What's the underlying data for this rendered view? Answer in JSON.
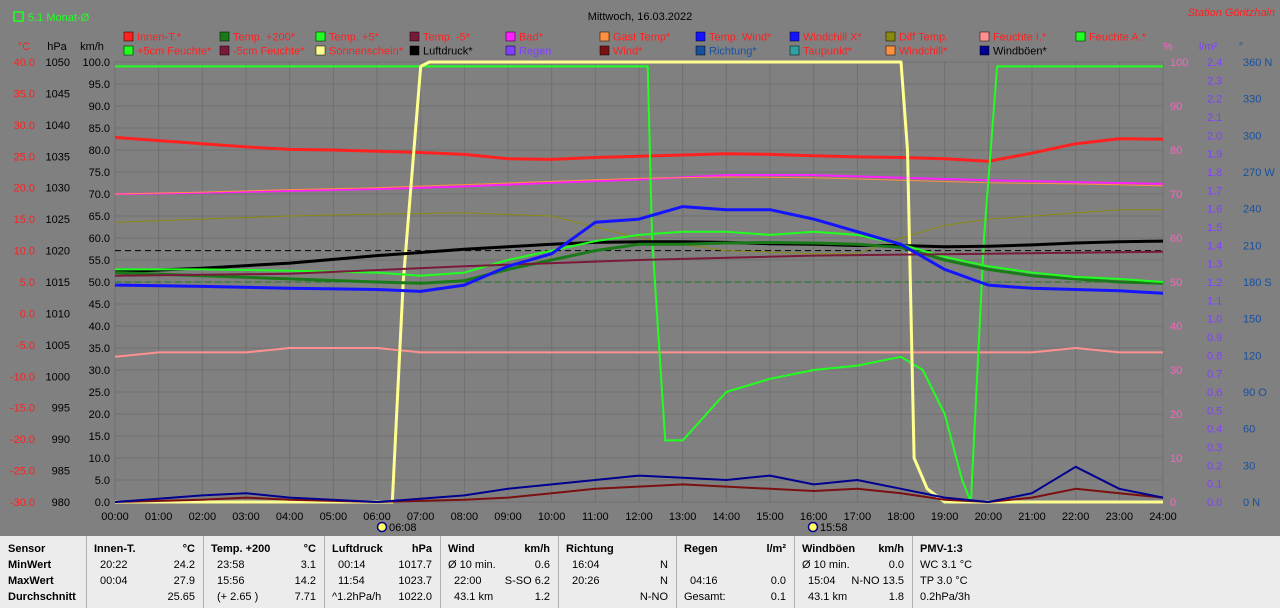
{
  "header": {
    "title": "Mittwoch, 16.03.2022",
    "station": "Station Göritzhain",
    "monthly_avg_label": "5.1 Monat-Ø"
  },
  "colors": {
    "background": "#808080",
    "grid": "#707070",
    "innen_t": "#ff2020",
    "temp_200": "#1a7a1a",
    "temp_p5": "#20ff20",
    "temp_m5": "#7a1a3a",
    "bad": "#ff20ff",
    "gast": "#ff9040",
    "temp_wind": "#1414ff",
    "windchill_x": "#1414ff",
    "diff": "#8a8a10",
    "feuchte_i": "#ff9090",
    "feuchte_a": "#20ff20",
    "sonne": "#ffff90",
    "luftdruck": "#000000",
    "regen": "#8040ff",
    "wind": "#7a1010",
    "richtung": "#1850a0",
    "taupunkt": "#30a0a0",
    "windboeen": "#000090"
  },
  "legend": [
    {
      "label": "Innen-T.*",
      "color": "#ff2020",
      "text_color": "#ff2020"
    },
    {
      "label": "Temp. +200*",
      "color": "#1a7a1a",
      "text_color": "#ff2020"
    },
    {
      "label": "Temp. +5*",
      "color": "#20ff20",
      "text_color": "#ff2020"
    },
    {
      "label": "Temp. -5*",
      "color": "#7a1a3a",
      "text_color": "#ff2020"
    },
    {
      "label": "Bad*",
      "color": "#ff20ff",
      "text_color": "#ff2020"
    },
    {
      "label": "Gast Temp*",
      "color": "#ff9040",
      "text_color": "#ff2020"
    },
    {
      "label": "Temp. Wind*",
      "color": "#1414ff",
      "text_color": "#ff2020"
    },
    {
      "label": "Windchill X*",
      "color": "#1414ff",
      "text_color": "#ff2020"
    },
    {
      "label": "Diff Temp.",
      "color": "#8a8a10",
      "text_color": "#ff2020"
    },
    {
      "label": "Feuchte I.*",
      "color": "#ff9090",
      "text_color": "#ff2020"
    },
    {
      "label": "Feuchte A.*",
      "color": "#20ff20",
      "text_color": "#ff2020"
    },
    {
      "label": "+5cm Feuchte*",
      "color": "#20ff20",
      "text_color": "#ff2020"
    },
    {
      "label": "-5cm Feuchte*",
      "color": "#7a1a3a",
      "text_color": "#ff2020"
    },
    {
      "label": "Sonnenschein*",
      "color": "#ffff90",
      "text_color": "#ff2020"
    },
    {
      "label": "Luftdruck*",
      "color": "#000000",
      "text_color": "#000000"
    },
    {
      "label": "Regen",
      "color": "#8040ff",
      "text_color": "#8040ff"
    },
    {
      "label": "Wind*",
      "color": "#7a1010",
      "text_color": "#ff2020"
    },
    {
      "label": "Richtung*",
      "color": "#1850a0",
      "text_color": "#1850a0"
    },
    {
      "label": "Taupunkt*",
      "color": "#30a0a0",
      "text_color": "#ff2020"
    },
    {
      "label": "Windchill*",
      "color": "#ff9040",
      "text_color": "#ff2020"
    },
    {
      "label": "Windböen*",
      "color": "#000090",
      "text_color": "#000000"
    }
  ],
  "axes": {
    "celsius": {
      "label": "°C",
      "ticks": [
        "40.0",
        "35.0",
        "30.0",
        "25.0",
        "20.0",
        "15.0",
        "10.0",
        "5.0",
        "0.0",
        "-5.0",
        "-10.0",
        "-15.0",
        "-20.0",
        "-25.0",
        "-30.0"
      ]
    },
    "hpa": {
      "label": "hPa",
      "ticks": [
        "1050",
        "1045",
        "1040",
        "1035",
        "1030",
        "1025",
        "1020",
        "1015",
        "1010",
        "1005",
        "1000",
        "995",
        "990",
        "985",
        "980"
      ]
    },
    "kmh": {
      "label": "km/h",
      "ticks": [
        "100.0",
        "95.0",
        "90.0",
        "85.0",
        "80.0",
        "75.0",
        "70.0",
        "65.0",
        "60.0",
        "55.0",
        "50.0",
        "45.0",
        "40.0",
        "35.0",
        "30.0",
        "25.0",
        "20.0",
        "15.0",
        "10.0",
        "5.0",
        "0.0"
      ]
    },
    "percent": {
      "label": "%",
      "ticks": [
        "100",
        "90",
        "80",
        "70",
        "60",
        "50",
        "40",
        "30",
        "20",
        "10",
        "0"
      ]
    },
    "lm2": {
      "label": "l/m²",
      "ticks": [
        "2.4",
        "2.3",
        "2.2",
        "2.1",
        "2.0",
        "1.9",
        "1.8",
        "1.7",
        "1.6",
        "1.5",
        "1.4",
        "1.3",
        "1.2",
        "1.1",
        "1.0",
        "0.9",
        "0.8",
        "0.7",
        "0.6",
        "0.5",
        "0.4",
        "0.3",
        "0.2",
        "0.1",
        "0.0"
      ]
    },
    "degree": {
      "label": "°",
      "ticks": [
        "360 N",
        "330",
        "300",
        "270 W",
        "240",
        "210",
        "180 S",
        "150",
        "120",
        "90 O",
        "60",
        "30",
        "0 N"
      ]
    },
    "time": [
      "00:00",
      "01:00",
      "02:00",
      "03:00",
      "04:00",
      "05:00",
      "06:00",
      "07:00",
      "08:00",
      "09:00",
      "10:00",
      "11:00",
      "12:00",
      "13:00",
      "14:00",
      "15:00",
      "16:00",
      "17:00",
      "18:00",
      "19:00",
      "20:00",
      "21:00",
      "22:00",
      "23:00",
      "24:00"
    ]
  },
  "markers": {
    "sunrise": "06:08",
    "sunset": "15:58"
  },
  "chart_data": {
    "type": "line",
    "title": "Mittwoch, 16.03.2022",
    "x_unit": "hours",
    "x_range": [
      0,
      24
    ],
    "reference_lines": [
      {
        "name": "Luftdruck reference",
        "y_hpa": 1020,
        "style": "dashed"
      },
      {
        "name": "Temp reference",
        "y_c": 5.0,
        "style": "dashed"
      }
    ],
    "series": [
      {
        "name": "Innen-T.*",
        "axis": "celsius",
        "color": "#ff2020",
        "width": 3,
        "x": [
          0,
          1,
          2,
          3,
          4,
          5,
          6,
          7,
          8,
          9,
          10,
          11,
          12,
          13,
          14,
          15,
          16,
          17,
          18,
          19,
          20,
          21,
          22,
          23,
          24
        ],
        "y": [
          28.0,
          27.5,
          27.0,
          26.5,
          26.1,
          26.0,
          25.8,
          25.6,
          25.3,
          24.6,
          24.5,
          24.8,
          25.0,
          25.2,
          25.4,
          25.3,
          25.1,
          24.9,
          24.8,
          24.6,
          24.2,
          25.5,
          27.0,
          27.8,
          27.7
        ]
      },
      {
        "name": "Bad*",
        "axis": "celsius",
        "color": "#ff20ff",
        "width": 2,
        "x": [
          0,
          2,
          4,
          6,
          8,
          10,
          12,
          14,
          16,
          18,
          20,
          22,
          24
        ],
        "y": [
          19.0,
          19.2,
          19.5,
          19.8,
          20.2,
          20.8,
          21.3,
          22.0,
          22.0,
          21.6,
          21.2,
          20.9,
          20.6
        ]
      },
      {
        "name": "Gast Temp*",
        "axis": "celsius",
        "color": "#ff9040",
        "width": 1,
        "x": [
          0,
          2,
          4,
          6,
          8,
          10,
          12,
          14,
          16,
          18,
          20,
          22,
          24
        ],
        "y": [
          19.0,
          19.3,
          19.7,
          20.0,
          20.5,
          21.0,
          21.5,
          21.7,
          21.6,
          21.2,
          20.8,
          20.6,
          20.3
        ]
      },
      {
        "name": "Diff Temp.",
        "axis": "celsius",
        "color": "#8a8a10",
        "width": 1,
        "x": [
          0,
          2,
          4,
          6,
          8,
          10,
          12,
          14,
          16,
          17,
          18,
          19,
          20,
          21,
          22,
          23,
          24
        ],
        "y": [
          14.5,
          15.0,
          15.5,
          15.8,
          16.0,
          15.5,
          12.0,
          10.0,
          9.5,
          9.5,
          12.0,
          14.0,
          15.0,
          15.5,
          16.0,
          16.5,
          16.5
        ]
      },
      {
        "name": "Feuchte I.*",
        "axis": "percent",
        "color": "#ff9090",
        "width": 2,
        "x": [
          0,
          1,
          2,
          3,
          4,
          5,
          6,
          7,
          8,
          9,
          10,
          11,
          12,
          13,
          14,
          15,
          16,
          17,
          18,
          19,
          20,
          21,
          22,
          23,
          24
        ],
        "y": [
          33,
          34,
          34,
          34,
          35,
          35,
          35,
          34,
          34,
          34,
          34,
          34,
          34,
          34,
          34,
          34,
          34,
          34,
          34,
          34,
          34,
          34,
          35,
          34,
          34
        ]
      },
      {
        "name": "Feuchte A.*",
        "axis": "percent",
        "color": "#20ff20",
        "width": 2,
        "x": [
          0,
          6.5,
          12.2,
          12.3,
          12.6,
          13,
          14,
          15,
          16,
          17,
          18,
          18.5,
          19,
          19.4,
          19.6,
          19.9,
          20.2,
          24
        ],
        "y": [
          99,
          99,
          99,
          60,
          14,
          14,
          25,
          28,
          30,
          31,
          33,
          30,
          20,
          5,
          0,
          60,
          99,
          99
        ]
      },
      {
        "name": "Sonnenschein*",
        "axis": "percent",
        "color": "#ffff90",
        "width": 3,
        "x": [
          0,
          6.35,
          6.6,
          7.0,
          7.2,
          18.0,
          18.15,
          18.3,
          18.6,
          19.0,
          24
        ],
        "y": [
          0,
          0,
          50,
          99,
          100,
          100,
          80,
          10,
          3,
          0,
          0
        ]
      },
      {
        "name": "Luftdruck*",
        "axis": "hpa",
        "color": "#000000",
        "width": 3,
        "x": [
          0,
          2,
          4,
          5,
          6,
          7,
          8,
          9,
          10,
          11,
          12,
          13,
          14,
          15,
          16,
          17,
          18,
          19,
          20,
          21,
          22,
          23,
          24
        ],
        "y": [
          1016.6,
          1017.2,
          1018.0,
          1018.6,
          1019.2,
          1019.7,
          1020.2,
          1020.6,
          1021.0,
          1021.3,
          1021.4,
          1021.4,
          1021.3,
          1021.1,
          1021.0,
          1020.8,
          1020.8,
          1020.6,
          1020.7,
          1020.9,
          1021.2,
          1021.4,
          1021.5
        ]
      },
      {
        "name": "Temp. +200*",
        "axis": "celsius",
        "color": "#1a7a1a",
        "width": 3,
        "x": [
          0,
          2,
          4,
          6,
          7,
          8,
          9,
          10,
          11,
          12,
          13,
          14,
          15,
          16,
          17,
          18,
          19,
          20,
          21,
          22,
          23,
          24
        ],
        "y": [
          6.5,
          6.0,
          5.5,
          5.0,
          4.8,
          5.2,
          7.0,
          8.5,
          10.0,
          11.0,
          11.0,
          11.2,
          11.3,
          11.2,
          11.0,
          10.5,
          8.5,
          7.0,
          6.0,
          5.5,
          5.0,
          4.8
        ]
      },
      {
        "name": "Temp. +5*",
        "axis": "celsius",
        "color": "#20ff20",
        "width": 2,
        "x": [
          0,
          2,
          4,
          6,
          7,
          8,
          9,
          10,
          11,
          12,
          13,
          14,
          15,
          16,
          17,
          18,
          19,
          20,
          21,
          22,
          23,
          24
        ],
        "y": [
          7.0,
          7.0,
          6.8,
          6.5,
          6.0,
          6.5,
          8.5,
          10.0,
          11.5,
          12.5,
          13.0,
          13.0,
          12.5,
          13.0,
          12.5,
          11.0,
          9.0,
          7.5,
          6.5,
          5.8,
          5.5,
          5.0
        ]
      },
      {
        "name": "Temp. -5*",
        "axis": "celsius",
        "color": "#7a1a3a",
        "width": 2,
        "x": [
          0,
          4,
          8,
          12,
          16,
          20,
          24
        ],
        "y": [
          6.0,
          6.3,
          7.5,
          8.5,
          9.2,
          9.5,
          9.8
        ]
      },
      {
        "name": "Temp. Wind*",
        "axis": "celsius",
        "color": "#1414ff",
        "width": 3,
        "x": [
          0,
          2,
          4,
          6,
          7,
          8,
          9,
          10,
          11,
          12,
          13,
          14,
          15,
          16,
          17,
          18,
          19,
          20,
          21,
          22,
          23,
          24
        ],
        "y": [
          4.5,
          4.3,
          4.0,
          3.8,
          3.5,
          4.5,
          7.5,
          9.5,
          14.5,
          15.0,
          17.0,
          16.5,
          16.5,
          15.0,
          13.0,
          11.0,
          7.0,
          4.5,
          4.0,
          3.8,
          3.6,
          3.2
        ]
      },
      {
        "name": "Wind*",
        "axis": "kmh",
        "color": "#7a1010",
        "width": 2,
        "x": [
          0,
          2,
          3,
          4,
          6,
          8,
          9,
          10,
          11,
          12,
          13,
          14,
          15,
          16,
          17,
          18,
          19,
          20,
          21,
          22,
          23,
          24
        ],
        "y": [
          0,
          0.5,
          1,
          0.5,
          0,
          0.5,
          1,
          2,
          3,
          3.5,
          4,
          3.5,
          3,
          2.5,
          3,
          2,
          0.5,
          0,
          1,
          3,
          2,
          1
        ]
      },
      {
        "name": "Windböen*",
        "axis": "kmh",
        "color": "#000090",
        "width": 2,
        "x": [
          0,
          2,
          3,
          4,
          6,
          8,
          9,
          10,
          11,
          12,
          13,
          14,
          15,
          16,
          17,
          18,
          19,
          20,
          21,
          22,
          23,
          24
        ],
        "y": [
          0,
          1.5,
          2,
          1,
          0,
          1.5,
          3,
          4,
          5,
          6,
          5.5,
          5,
          6,
          4,
          5,
          3,
          1,
          0,
          2,
          8,
          3,
          1
        ]
      }
    ]
  },
  "stats": {
    "sensor": {
      "title": "Sensor",
      "rows": [
        "MinWert",
        "MaxWert",
        "Durchschnitt"
      ]
    },
    "innen": {
      "title": "Innen-T.",
      "unit": "°C",
      "rows": [
        [
          "20:22",
          "24.2"
        ],
        [
          "00:04",
          "27.9"
        ],
        [
          "",
          "25.65"
        ]
      ]
    },
    "temp200": {
      "title": "Temp. +200",
      "unit": "°C",
      "rows": [
        [
          "23:58",
          "3.1"
        ],
        [
          "15:56",
          "14.2"
        ],
        [
          "(+ 2.65 )",
          "7.71"
        ]
      ]
    },
    "luftdruck": {
      "title": "Luftdruck",
      "unit": "hPa",
      "rows": [
        [
          "00:14",
          "1017.7"
        ],
        [
          "11:54",
          "1023.7"
        ],
        [
          "^1.2hPa/h",
          "1022.0"
        ]
      ]
    },
    "wind": {
      "title": "Wind",
      "unit": "km/h",
      "rows": [
        [
          "Ø 10 min.",
          "0.6"
        ],
        [
          "22:00",
          "S-SO 6.2"
        ],
        [
          "43.1 km",
          "1.2"
        ]
      ]
    },
    "richtung": {
      "title": "Richtung",
      "unit": "",
      "rows": [
        [
          "16:04",
          "N"
        ],
        [
          "20:26",
          "N"
        ],
        [
          "",
          "N-NO"
        ]
      ]
    },
    "regen": {
      "title": "Regen",
      "unit": "l/m²",
      "rows": [
        [
          "",
          ""
        ],
        [
          "04:16",
          "0.0"
        ],
        [
          "Gesamt:",
          "0.1"
        ]
      ]
    },
    "windboeen": {
      "title": "Windböen",
      "unit": "km/h",
      "rows": [
        [
          "Ø 10 min.",
          "0.0"
        ],
        [
          "15:04",
          "N-NO 13.5"
        ],
        [
          "43.1 km",
          "1.8"
        ]
      ]
    },
    "pmv": {
      "title": "PMV-1:3",
      "unit": "",
      "rows": [
        "WC 3.1 °C",
        "TP 3.0 °C",
        "0.2hPa/3h"
      ]
    }
  }
}
